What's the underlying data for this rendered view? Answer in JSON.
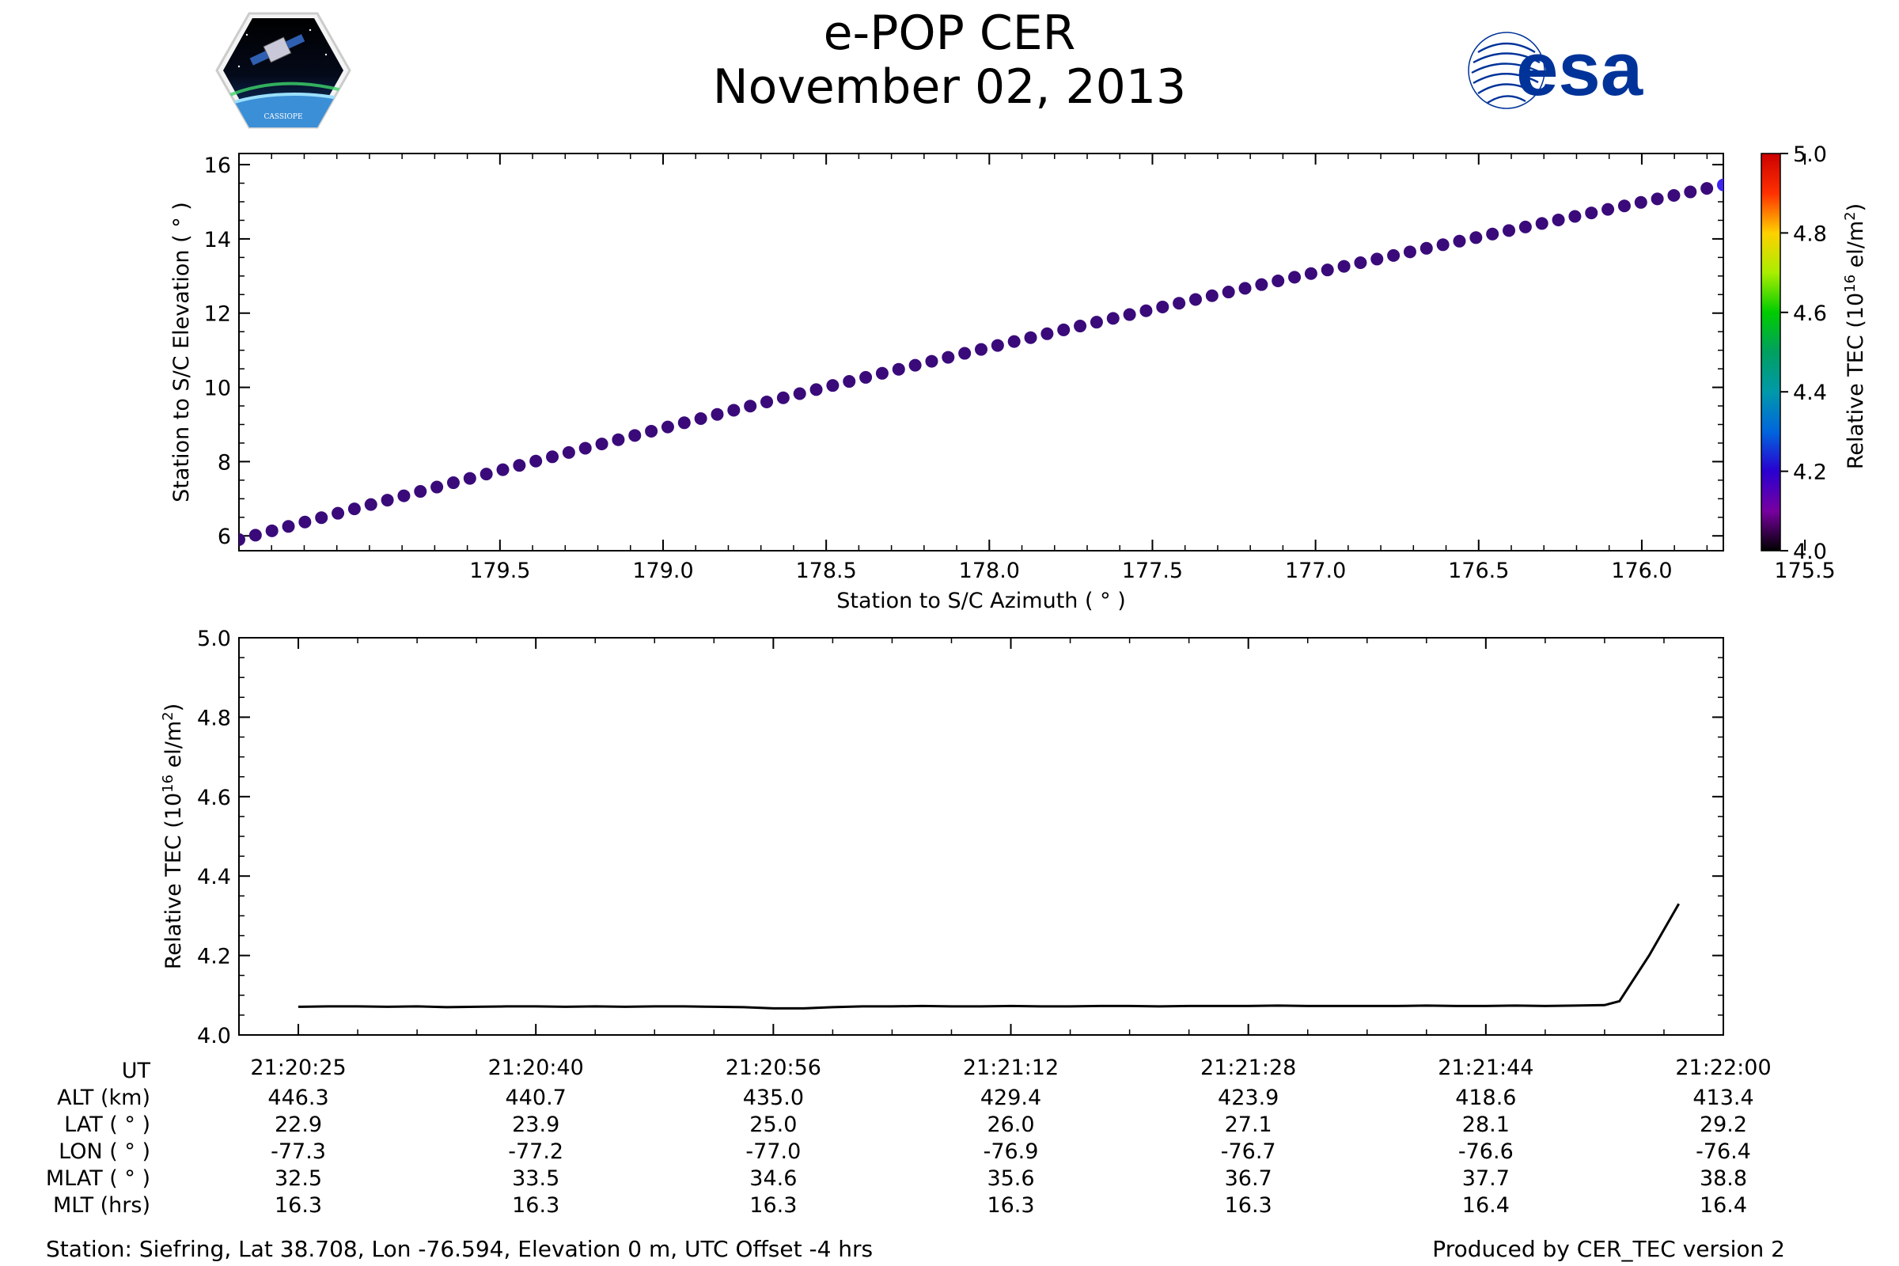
{
  "header": {
    "title": "e-POP CER",
    "date": "November 02, 2013"
  },
  "logos": {
    "left": {
      "icon": "cassiope-mission-logo",
      "text": "CASSIOPE"
    },
    "right": {
      "icon": "esa-logo",
      "text": "esa",
      "color": "#003399"
    }
  },
  "chart_data": [
    {
      "type": "scatter",
      "xlabel": "Station to S/C Azimuth ( ° )",
      "ylabel": "Station to S/C Elevation ( ° )",
      "xlim": [
        180.3,
        175.75
      ],
      "ylim": [
        5.6,
        16.3
      ],
      "x_inverted": true,
      "xticks": [
        179.5,
        179.0,
        178.5,
        178.0,
        177.5,
        177.0,
        176.5,
        176.0,
        175.5
      ],
      "yticks": [
        6,
        8,
        10,
        12,
        14,
        16
      ],
      "x_start": 180.3,
      "x_end": 175.75,
      "y_start": 5.9,
      "y_end": 15.8,
      "point_count": 91,
      "point_color": "#3a0a7a",
      "last_point_color": "#3e24f0",
      "colorbar": {
        "label": "Relative TEC (10^16 el/m^2)",
        "range": [
          4.0,
          5.0
        ],
        "ticks": [
          "4.0",
          "4.2",
          "4.4",
          "4.6",
          "4.8",
          "5.0"
        ],
        "colormap": "nipy_spectral"
      },
      "grid": false
    },
    {
      "type": "line",
      "ylabel": "Relative TEC (10^16 el/m^2)",
      "ylim": [
        4.0,
        5.0
      ],
      "yticks": [
        "4.0",
        "4.2",
        "4.4",
        "4.6",
        "4.8",
        "5.0"
      ],
      "x_range_seconds": [
        -4,
        96
      ],
      "line_color": "#000000",
      "series": [
        {
          "x": [
            0,
            2,
            4,
            6,
            8,
            10,
            12,
            14,
            16,
            18,
            20,
            22,
            24,
            26,
            28,
            30,
            32,
            34,
            36,
            38,
            40,
            42,
            44,
            46,
            48,
            50,
            52,
            54,
            56,
            58,
            60,
            62,
            64,
            66,
            68,
            70,
            72,
            74,
            76,
            78,
            80,
            82,
            84,
            86,
            88,
            89,
            91,
            93
          ],
          "y": [
            4.071,
            4.072,
            4.072,
            4.071,
            4.072,
            4.07,
            4.071,
            4.072,
            4.072,
            4.071,
            4.072,
            4.071,
            4.072,
            4.072,
            4.071,
            4.07,
            4.067,
            4.067,
            4.07,
            4.072,
            4.072,
            4.073,
            4.072,
            4.072,
            4.073,
            4.072,
            4.072,
            4.073,
            4.073,
            4.072,
            4.073,
            4.073,
            4.073,
            4.074,
            4.073,
            4.073,
            4.073,
            4.073,
            4.074,
            4.073,
            4.073,
            4.074,
            4.073,
            4.074,
            4.075,
            4.085,
            4.2,
            4.33
          ]
        }
      ],
      "xaxis_table": {
        "row_labels": [
          "UT",
          "ALT (km)",
          "LAT ( ° )",
          "LON ( ° )",
          "MLAT ( ° )",
          "MLT (hrs)"
        ],
        "columns": [
          [
            "21:20:25",
            "446.3",
            "22.9",
            "-77.3",
            "32.5",
            "16.3"
          ],
          [
            "21:20:40",
            "440.7",
            "23.9",
            "-77.2",
            "33.5",
            "16.3"
          ],
          [
            "21:20:56",
            "435.0",
            "25.0",
            "-77.0",
            "34.6",
            "16.3"
          ],
          [
            "21:21:12",
            "429.4",
            "26.0",
            "-76.9",
            "35.6",
            "16.3"
          ],
          [
            "21:21:28",
            "423.9",
            "27.1",
            "-76.7",
            "36.7",
            "16.3"
          ],
          [
            "21:21:44",
            "418.6",
            "28.1",
            "-76.6",
            "37.7",
            "16.4"
          ],
          [
            "21:22:00",
            "413.4",
            "29.2",
            "-76.4",
            "38.8",
            "16.4"
          ]
        ]
      },
      "grid": false
    }
  ],
  "footer": {
    "station": "Station: Siefring, Lat 38.708, Lon -76.594, Elevation 0 m, UTC Offset -4 hrs",
    "produced": "Produced by CER_TEC version 2"
  }
}
